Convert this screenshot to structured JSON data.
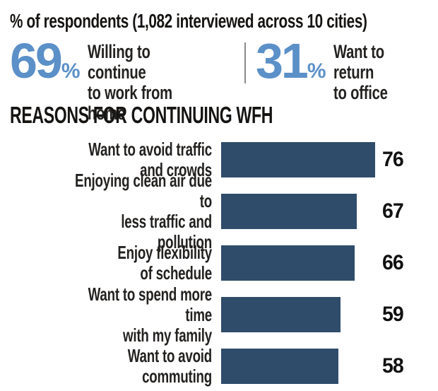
{
  "header": {
    "title": "% of respondents (1,082 interviewed across 10 cities)"
  },
  "stats": [
    {
      "value": "69",
      "unit": "%",
      "label": "Willing to continue\nto work from home"
    },
    {
      "value": "31",
      "unit": "%",
      "label": "Want to return\nto office"
    }
  ],
  "section_title": "REASONS FOR CONTINUING WFH",
  "chart_data": {
    "type": "bar",
    "orientation": "horizontal",
    "title": "REASONS FOR CONTINUING WFH",
    "categories": [
      "Want to avoid traffic and crowds",
      "Enjoying clean air due to less traffic and pollution",
      "Enjoy flexibility of schedule",
      "Want to spend more time with my family",
      "Want to avoid commuting"
    ],
    "categories_wrapped": [
      "Want to avoid traffic\nand crowds",
      "Enjoying clean air due to\nless traffic and pollution",
      "Enjoy flexibility\nof schedule",
      "Want to spend more time\nwith my family",
      "Want to avoid\ncommuting"
    ],
    "values": [
      76,
      67,
      66,
      59,
      58
    ],
    "xlim": [
      0,
      76
    ],
    "value_labels_shown": true,
    "axes_shown": false,
    "grid": false,
    "legend": false
  },
  "colors": {
    "bar": "#2f4c6a",
    "accent": "#5b90c8",
    "text": "#1d1d1b",
    "divider": "#8a8a8a",
    "background": "#ffffff"
  }
}
